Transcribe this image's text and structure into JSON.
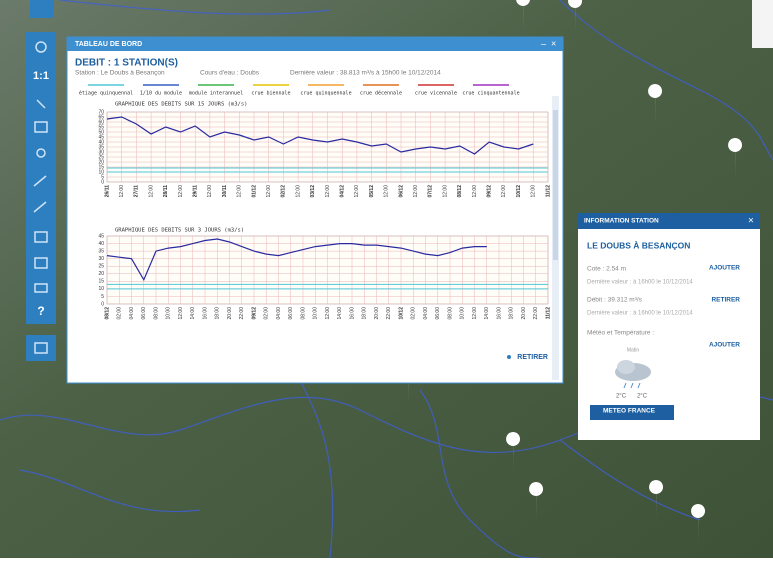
{
  "toolbar": {
    "scale": "1:1",
    "help": "?"
  },
  "dashboard": {
    "title": "TABLEAU DE BORD",
    "heading": "DEBIT : 1 STATION(S)",
    "station": "Station : Le Doubs à Besançon",
    "river": "Cours d'eau : Doubs",
    "last_value": "Dernière valeur : 38.813 m³/s à 15h00 le 10/12/2014",
    "remove": "RETIRER",
    "legend": [
      {
        "name": "étiage quinquennal",
        "color": "#4fc8d8"
      },
      {
        "name": "1/10 du module",
        "color": "#3a5fc0"
      },
      {
        "name": "module interannuel",
        "color": "#3cb44b"
      },
      {
        "name": "crue biennale",
        "color": "#e6c200"
      },
      {
        "name": "crue quinquennale",
        "color": "#f0a030"
      },
      {
        "name": "crue décennale",
        "color": "#e07020"
      },
      {
        "name": "crue vicennale",
        "color": "#d03030"
      },
      {
        "name": "crue cinquantennale",
        "color": "#a030c0"
      }
    ]
  },
  "chart_data": [
    {
      "type": "line",
      "title": "GRAPHIQUE DES DEBITS SUR 15 JOURS (m3/s)",
      "categories": [
        "26/11",
        "12:00",
        "27/11",
        "12:00",
        "28/11",
        "12:00",
        "29/11",
        "12:00",
        "30/11",
        "12:00",
        "01/12",
        "12:00",
        "02/12",
        "12:00",
        "03/12",
        "12:00",
        "04/12",
        "12:00",
        "05/12",
        "12:00",
        "06/12",
        "12:00",
        "07/12",
        "12:00",
        "08/12",
        "12:00",
        "09/12",
        "12:00",
        "10/12",
        "12:00",
        "11/12"
      ],
      "values": [
        63,
        65,
        58,
        48,
        55,
        50,
        56,
        45,
        50,
        47,
        42,
        45,
        38,
        45,
        42,
        40,
        43,
        40,
        36,
        38,
        30,
        33,
        35,
        33,
        36,
        28,
        40,
        35,
        33,
        38,
        null
      ],
      "color": "#2a2aa0",
      "threshold_lines": [
        {
          "value": 10,
          "color": "#4fc8d8"
        },
        {
          "value": 14,
          "color": "#4fc8d8"
        }
      ],
      "ylim": [
        0,
        70
      ],
      "yticks": [
        0,
        5,
        10,
        15,
        20,
        25,
        30,
        35,
        40,
        45,
        50,
        55,
        60,
        65,
        70
      ],
      "grid": true
    },
    {
      "type": "line",
      "title": "GRAPHIQUE DES DEBITS SUR 3 JOURS (m3/s)",
      "categories": [
        "08/12",
        "02:00",
        "04:00",
        "06:00",
        "08:00",
        "10:00",
        "12:00",
        "14:00",
        "16:00",
        "18:00",
        "20:00",
        "22:00",
        "09/12",
        "02:00",
        "04:00",
        "06:00",
        "08:00",
        "10:00",
        "12:00",
        "14:00",
        "16:00",
        "18:00",
        "20:00",
        "22:00",
        "10/12",
        "02:00",
        "04:00",
        "06:00",
        "08:00",
        "10:00",
        "12:00",
        "14:00",
        "16:00",
        "18:00",
        "20:00",
        "22:00",
        "11/12"
      ],
      "values": [
        32,
        31,
        30,
        16,
        35,
        37,
        38,
        40,
        42,
        43,
        41,
        38,
        35,
        33,
        32,
        34,
        36,
        38,
        39,
        40,
        40,
        39,
        39,
        38,
        37,
        35,
        33,
        32,
        34,
        37,
        38,
        38,
        null,
        null,
        null,
        null,
        null
      ],
      "color": "#2a2aa0",
      "threshold_lines": [
        {
          "value": 10,
          "color": "#4fc8d8"
        },
        {
          "value": 13,
          "color": "#4fc8d8"
        }
      ],
      "ylim": [
        0,
        45
      ],
      "yticks": [
        0,
        5,
        10,
        15,
        20,
        25,
        30,
        35,
        40,
        45
      ],
      "grid": true
    }
  ],
  "info_panel": {
    "title": "INFORMATION STATION",
    "station": "LE DOUBS À BESANÇON",
    "cote": "Cote : 2.54 m",
    "cote_date": "Dernière valeur : à 16h00 le 10/12/2014",
    "add": "AJOUTER",
    "debit": "Débit : 39.312 m³/s",
    "debit_date": "Dernière valeur : à 16h00 le 10/12/2014",
    "remove": "RETIRER",
    "weather": "Météo et Température :",
    "weather_add": "AJOUTER",
    "weather_label": "Matin",
    "temp_min": "2°C",
    "temp_max": "2°C",
    "brand": "METEO FRANCE"
  }
}
